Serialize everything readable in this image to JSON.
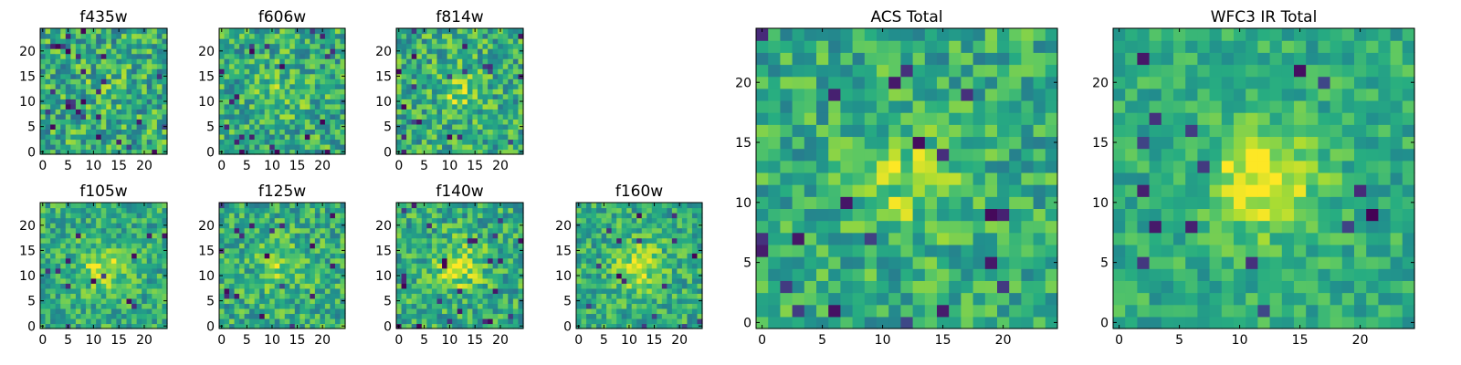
{
  "figure": {
    "background": "#ffffff",
    "colormap": "viridis"
  },
  "chart_data": [
    {
      "type": "heatmap",
      "title": "f435w",
      "grid_size": 25,
      "xticks": [
        0,
        5,
        10,
        15,
        20
      ],
      "yticks": [
        0,
        5,
        10,
        15,
        20
      ],
      "xlim": [
        0,
        25
      ],
      "ylim": [
        0,
        25
      ],
      "center_peak": 0.05,
      "noise": 0.26,
      "dark_fraction": 0.04,
      "seed": 11
    },
    {
      "type": "heatmap",
      "title": "f606w",
      "grid_size": 25,
      "xticks": [
        0,
        5,
        10,
        15,
        20
      ],
      "yticks": [
        0,
        5,
        10,
        15,
        20
      ],
      "xlim": [
        0,
        25
      ],
      "ylim": [
        0,
        25
      ],
      "center_peak": 0.12,
      "noise": 0.24,
      "dark_fraction": 0.04,
      "seed": 22
    },
    {
      "type": "heatmap",
      "title": "f814w",
      "grid_size": 25,
      "xticks": [
        0,
        5,
        10,
        15,
        20
      ],
      "yticks": [
        0,
        5,
        10,
        15,
        20
      ],
      "xlim": [
        0,
        25
      ],
      "ylim": [
        0,
        25
      ],
      "center_peak": 0.18,
      "noise": 0.24,
      "dark_fraction": 0.035,
      "seed": 33
    },
    {
      "type": "heatmap",
      "title": "f105w",
      "grid_size": 25,
      "xticks": [
        0,
        5,
        10,
        15,
        20
      ],
      "yticks": [
        0,
        5,
        10,
        15,
        20
      ],
      "xlim": [
        0,
        25
      ],
      "ylim": [
        0,
        25
      ],
      "center_peak": 0.28,
      "noise": 0.2,
      "dark_fraction": 0.02,
      "seed": 44
    },
    {
      "type": "heatmap",
      "title": "f125w",
      "grid_size": 25,
      "xticks": [
        0,
        5,
        10,
        15,
        20
      ],
      "yticks": [
        0,
        5,
        10,
        15,
        20
      ],
      "xlim": [
        0,
        25
      ],
      "ylim": [
        0,
        25
      ],
      "center_peak": 0.22,
      "noise": 0.22,
      "dark_fraction": 0.025,
      "seed": 55
    },
    {
      "type": "heatmap",
      "title": "f140w",
      "grid_size": 25,
      "xticks": [
        0,
        5,
        10,
        15,
        20
      ],
      "yticks": [
        0,
        5,
        10,
        15,
        20
      ],
      "xlim": [
        0,
        25
      ],
      "ylim": [
        0,
        25
      ],
      "center_peak": 0.3,
      "noise": 0.22,
      "dark_fraction": 0.03,
      "seed": 66
    },
    {
      "type": "heatmap",
      "title": "f160w",
      "grid_size": 25,
      "xticks": [
        0,
        5,
        10,
        15,
        20
      ],
      "yticks": [
        0,
        5,
        10,
        15,
        20
      ],
      "xlim": [
        0,
        25
      ],
      "ylim": [
        0,
        25
      ],
      "center_peak": 0.3,
      "noise": 0.2,
      "dark_fraction": 0.02,
      "seed": 77
    },
    {
      "type": "heatmap",
      "title": "ACS Total",
      "grid_size": 25,
      "xticks": [
        0,
        5,
        10,
        15,
        20
      ],
      "yticks": [
        0,
        5,
        10,
        15,
        20
      ],
      "xlim": [
        0,
        25
      ],
      "ylim": [
        0,
        25
      ],
      "center_peak": 0.22,
      "noise": 0.2,
      "dark_fraction": 0.03,
      "seed": 88
    },
    {
      "type": "heatmap",
      "title": "WFC3 IR Total",
      "grid_size": 25,
      "xticks": [
        0,
        5,
        10,
        15,
        20
      ],
      "yticks": [
        0,
        5,
        10,
        15,
        20
      ],
      "xlim": [
        0,
        25
      ],
      "ylim": [
        0,
        25
      ],
      "center_peak": 0.38,
      "noise": 0.15,
      "dark_fraction": 0.025,
      "seed": 99
    }
  ]
}
